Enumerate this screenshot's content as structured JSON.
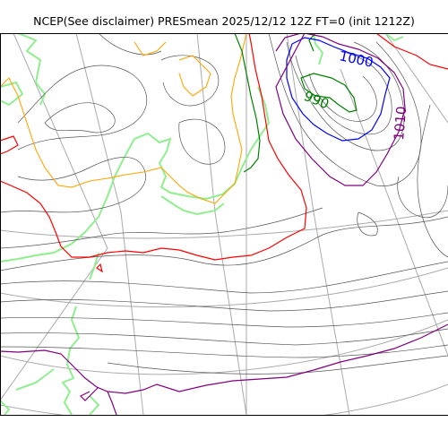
{
  "title": "NCEP(See disclaimer) PRESmean 2025/12/12 12Z FT=0 (init 1212Z)",
  "contour_labels": [
    {
      "text": "1000",
      "color": "#0000ff"
    },
    {
      "text": "990",
      "color": "#008000"
    },
    {
      "text": "1010",
      "color": "#800080"
    }
  ],
  "colors": {
    "isobar_default": "#555555",
    "isobar_1000": "#0000ff",
    "isobar_990": "#008000",
    "isobar_1010": "#800080",
    "isobar_red": "#ff0000",
    "isobar_orange": "#ffa500",
    "coastline": "#90ee90",
    "graticule": "#aaaaaa"
  }
}
